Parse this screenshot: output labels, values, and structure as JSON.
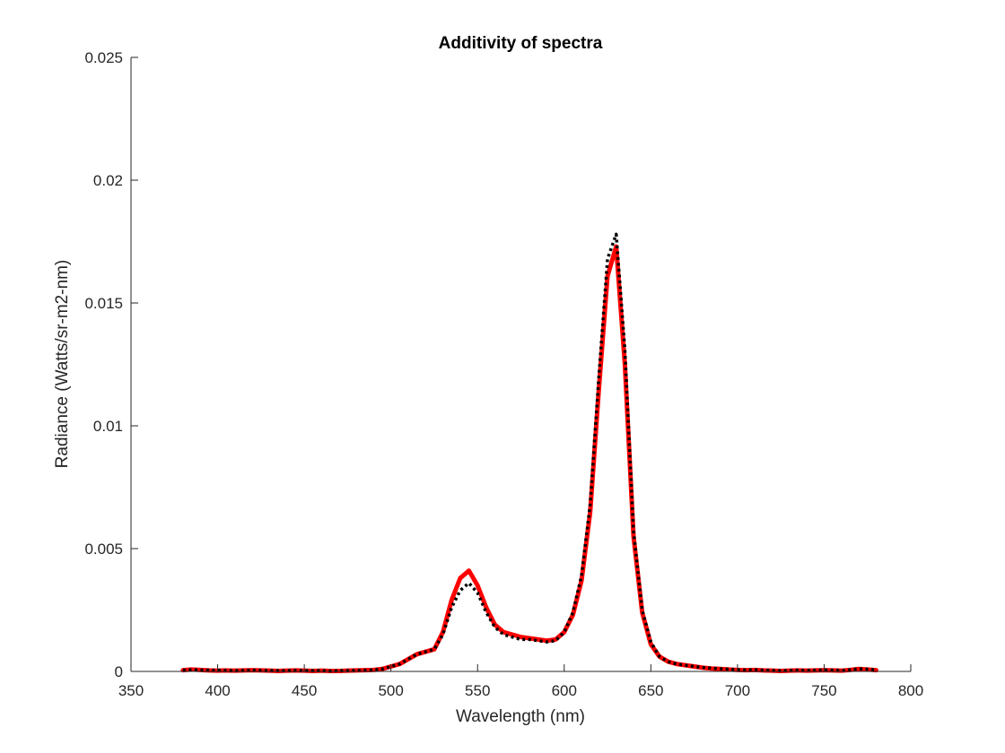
{
  "chart_data": {
    "type": "line",
    "title": "Additivity of spectra",
    "xlabel": "Wavelength (nm)",
    "ylabel": "Radiance (Watts/sr-m2-nm)",
    "xlim": [
      350,
      800
    ],
    "ylim": [
      0,
      0.025
    ],
    "xticks": [
      350,
      400,
      450,
      500,
      550,
      600,
      650,
      700,
      750,
      800
    ],
    "yticks": [
      0,
      0.005,
      0.01,
      0.015,
      0.02,
      0.025
    ],
    "xtick_labels": [
      "350",
      "400",
      "450",
      "500",
      "550",
      "600",
      "650",
      "700",
      "750",
      "800"
    ],
    "ytick_labels": [
      "0",
      "0.005",
      "0.01",
      "0.015",
      "0.02",
      "0.025"
    ],
    "grid": false,
    "legend": "none",
    "x": [
      380,
      385,
      390,
      395,
      400,
      405,
      410,
      415,
      420,
      425,
      430,
      435,
      440,
      445,
      450,
      455,
      460,
      465,
      470,
      475,
      480,
      485,
      490,
      495,
      500,
      505,
      510,
      515,
      520,
      525,
      530,
      535,
      540,
      545,
      550,
      555,
      560,
      565,
      570,
      575,
      580,
      585,
      590,
      595,
      600,
      605,
      610,
      615,
      620,
      625,
      630,
      635,
      640,
      645,
      650,
      655,
      660,
      665,
      670,
      675,
      680,
      685,
      690,
      695,
      700,
      705,
      710,
      715,
      720,
      725,
      730,
      735,
      740,
      745,
      750,
      755,
      760,
      765,
      770,
      775,
      780
    ],
    "series": [
      {
        "color": "#ff0000",
        "style": "solid",
        "values": [
          5e-05,
          8e-05,
          6e-05,
          4e-05,
          3e-05,
          4e-05,
          3e-05,
          4e-05,
          5e-05,
          4e-05,
          3e-05,
          2e-05,
          3e-05,
          4e-05,
          3e-05,
          2e-05,
          3e-05,
          2e-05,
          2e-05,
          3e-05,
          4e-05,
          5e-05,
          6e-05,
          0.0001,
          0.0002,
          0.0003,
          0.0005,
          0.0007,
          0.0008,
          0.0009,
          0.0016,
          0.0029,
          0.0038,
          0.0041,
          0.0035,
          0.0026,
          0.0019,
          0.0016,
          0.0015,
          0.0014,
          0.00135,
          0.0013,
          0.00125,
          0.0013,
          0.0016,
          0.0023,
          0.0037,
          0.0065,
          0.0115,
          0.0161,
          0.0173,
          0.0125,
          0.0055,
          0.0024,
          0.0011,
          0.0006,
          0.0004,
          0.0003,
          0.00025,
          0.0002,
          0.00015,
          0.00012,
          0.0001,
          8e-05,
          6e-05,
          5e-05,
          6e-05,
          4e-05,
          3e-05,
          2e-05,
          3e-05,
          4e-05,
          3e-05,
          4e-05,
          5e-05,
          4e-05,
          3e-05,
          6e-05,
          0.0001,
          8e-05,
          5e-05
        ]
      },
      {
        "color": "#000000",
        "style": "dotted",
        "values": [
          5e-05,
          7e-05,
          6e-05,
          5e-05,
          4e-05,
          4e-05,
          3e-05,
          4e-05,
          5e-05,
          4e-05,
          3e-05,
          3e-05,
          3e-05,
          4e-05,
          3e-05,
          3e-05,
          3e-05,
          2e-05,
          3e-05,
          3e-05,
          4e-05,
          5e-05,
          6e-05,
          0.0001,
          0.0002,
          0.0003,
          0.0005,
          0.0007,
          0.0008,
          0.0009,
          0.0015,
          0.0026,
          0.0033,
          0.0036,
          0.0032,
          0.0024,
          0.0018,
          0.0015,
          0.0014,
          0.0013,
          0.0013,
          0.00125,
          0.0012,
          0.00125,
          0.0016,
          0.0024,
          0.0039,
          0.0068,
          0.012,
          0.0168,
          0.0178,
          0.0131,
          0.0057,
          0.0025,
          0.0012,
          0.0006,
          0.0004,
          0.0003,
          0.00025,
          0.0002,
          0.00016,
          0.00013,
          0.00011,
          9e-05,
          7e-05,
          6e-05,
          7e-05,
          5e-05,
          4e-05,
          3e-05,
          4e-05,
          5e-05,
          4e-05,
          5e-05,
          6e-05,
          5e-05,
          4e-05,
          7e-05,
          0.00011,
          9e-05,
          6e-05
        ]
      }
    ]
  }
}
